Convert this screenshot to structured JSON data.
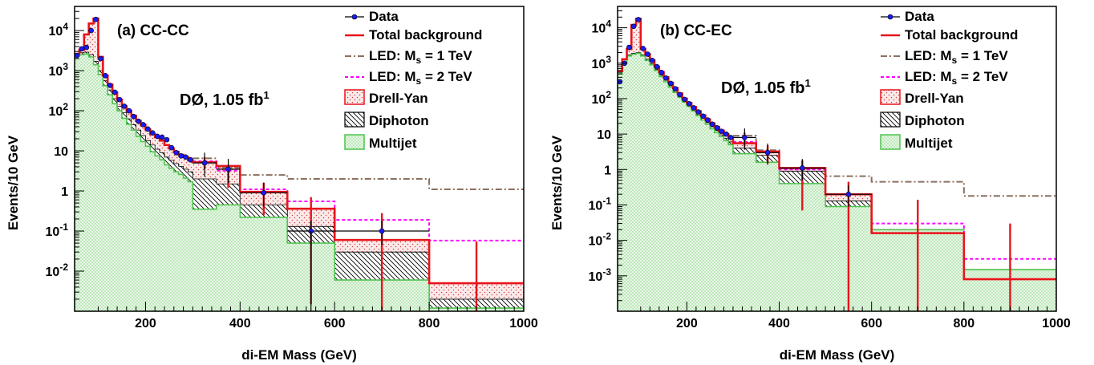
{
  "chart_data": [
    {
      "type": "histogram",
      "panel_label": "(a) CC-CC",
      "experiment_label": "DØ, 1.05 fb",
      "experiment_label_sup": "1",
      "xlabel": "di-EM Mass (GeV)",
      "ylabel": "Events/10 GeV",
      "xlim": [
        50,
        1000
      ],
      "ylim": [
        0.001,
        40000
      ],
      "yscale": "log",
      "x_ticks": [
        200,
        400,
        600,
        800,
        1000
      ],
      "y_ticks": [
        {
          "value": 0.01,
          "mant": "10",
          "exp": "-2"
        },
        {
          "value": 0.1,
          "mant": "10",
          "exp": "-1"
        },
        {
          "value": 1,
          "mant": "1",
          "exp": ""
        },
        {
          "value": 10,
          "mant": "10",
          "exp": ""
        },
        {
          "value": 100,
          "mant": "10",
          "exp": "2"
        },
        {
          "value": 1000,
          "mant": "10",
          "exp": "3"
        },
        {
          "value": 10000,
          "mant": "10",
          "exp": "4"
        }
      ],
      "grid": false,
      "legend_position": "top-right",
      "legend": {
        "data": "Data",
        "total": "Total background",
        "led1": "LED: M",
        "led1_sub": "s",
        "led1_rest": " = 1 TeV",
        "led2": "LED: M",
        "led2_sub": "s",
        "led2_rest": " = 2 TeV",
        "dy": "Drell-Yan",
        "diphoton": "Diphoton",
        "multijet": "Multijet"
      },
      "bin_edges": [
        50,
        60,
        70,
        80,
        90,
        100,
        110,
        120,
        130,
        140,
        150,
        160,
        170,
        180,
        190,
        200,
        210,
        220,
        230,
        240,
        250,
        260,
        270,
        280,
        290,
        300,
        350,
        400,
        500,
        600,
        800,
        1000
      ],
      "multijet": [
        2300,
        2500,
        2600,
        2200,
        1400,
        800,
        420,
        250,
        150,
        100,
        65,
        46,
        33,
        23,
        17,
        13,
        9.5,
        7.5,
        6,
        4.5,
        3.7,
        3,
        2.6,
        2.1,
        1.7,
        0.35,
        0.45,
        0.22,
        0.05,
        0.006,
        0.0012
      ],
      "diphoton": [
        2500,
        2800,
        2900,
        2500,
        1700,
        1000,
        560,
        330,
        200,
        130,
        90,
        63,
        45,
        33,
        24,
        18,
        14,
        11,
        9,
        7,
        5.8,
        4.8,
        4.1,
        3.5,
        3,
        2,
        1.5,
        0.45,
        0.13,
        0.03,
        0.002
      ],
      "total": [
        2600,
        3300,
        8000,
        15000,
        20000,
        2200,
        760,
        450,
        290,
        190,
        130,
        100,
        75,
        56,
        45,
        34,
        26,
        22,
        18,
        14,
        11.5,
        9.5,
        8,
        7,
        5.8,
        5.2,
        4.2,
        0.95,
        0.36,
        0.06,
        0.005
      ],
      "led_ms1": [
        null,
        null,
        null,
        null,
        null,
        null,
        null,
        null,
        null,
        null,
        null,
        null,
        null,
        null,
        null,
        null,
        null,
        null,
        null,
        null,
        null,
        null,
        null,
        null,
        null,
        6.5,
        3.8,
        2.5,
        2.0,
        2.0,
        1.1
      ],
      "led_ms2": [
        null,
        null,
        null,
        null,
        null,
        null,
        null,
        null,
        null,
        null,
        null,
        null,
        null,
        null,
        null,
        null,
        null,
        null,
        null,
        null,
        null,
        null,
        null,
        null,
        null,
        5.5,
        3.2,
        1.1,
        0.55,
        0.19,
        0.058
      ],
      "data_points": [
        {
          "x": 55,
          "y": 2400
        },
        {
          "x": 65,
          "y": 3500
        },
        {
          "x": 75,
          "y": 3800
        },
        {
          "x": 85,
          "y": 10000
        },
        {
          "x": 95,
          "y": 19000
        },
        {
          "x": 105,
          "y": 2000
        },
        {
          "x": 115,
          "y": 750
        },
        {
          "x": 125,
          "y": 430
        },
        {
          "x": 135,
          "y": 290
        },
        {
          "x": 145,
          "y": 190
        },
        {
          "x": 155,
          "y": 130
        },
        {
          "x": 165,
          "y": 100
        },
        {
          "x": 175,
          "y": 72
        },
        {
          "x": 185,
          "y": 55
        },
        {
          "x": 195,
          "y": 45
        },
        {
          "x": 205,
          "y": 35
        },
        {
          "x": 215,
          "y": 28
        },
        {
          "x": 225,
          "y": 23
        },
        {
          "x": 235,
          "y": 22
        },
        {
          "x": 245,
          "y": 19
        },
        {
          "x": 255,
          "y": 12
        },
        {
          "x": 265,
          "y": 9
        },
        {
          "x": 275,
          "y": 7.5
        },
        {
          "x": 285,
          "y": 7
        },
        {
          "x": 295,
          "y": 6
        },
        {
          "x": 325,
          "y": 5
        },
        {
          "x": 375,
          "y": 3.5
        },
        {
          "x": 450,
          "y": 0.9
        },
        {
          "x": 550,
          "y": 0.1
        },
        {
          "x": 700,
          "y": 0.1
        }
      ],
      "total_error_bars": [
        {
          "x": 325,
          "lo": 3.5,
          "hi": 7
        },
        {
          "x": 375,
          "lo": 1.2,
          "hi": 4.5
        },
        {
          "x": 450,
          "lo": 0.25,
          "hi": 1.6
        },
        {
          "x": 550,
          "lo": 0.0015,
          "hi": 0.7
        },
        {
          "x": 700,
          "lo": 0.0005,
          "hi": 0.28
        },
        {
          "x": 900,
          "lo": 0.0005,
          "hi": 0.055
        }
      ]
    },
    {
      "type": "histogram",
      "panel_label": "(b) CC-EC",
      "experiment_label": "DØ, 1.05 fb",
      "experiment_label_sup": "1",
      "xlabel": "di-EM Mass (GeV)",
      "ylabel": "Events/10 GeV",
      "xlim": [
        50,
        1000
      ],
      "ylim": [
        0.0001,
        40000
      ],
      "yscale": "log",
      "x_ticks": [
        200,
        400,
        600,
        800,
        1000
      ],
      "y_ticks": [
        {
          "value": 0.001,
          "mant": "10",
          "exp": "-3"
        },
        {
          "value": 0.01,
          "mant": "10",
          "exp": "-2"
        },
        {
          "value": 0.1,
          "mant": "10",
          "exp": "-1"
        },
        {
          "value": 1,
          "mant": "1",
          "exp": ""
        },
        {
          "value": 10,
          "mant": "10",
          "exp": ""
        },
        {
          "value": 100,
          "mant": "10",
          "exp": "2"
        },
        {
          "value": 1000,
          "mant": "10",
          "exp": "3"
        },
        {
          "value": 10000,
          "mant": "10",
          "exp": "4"
        }
      ],
      "grid": false,
      "legend_position": "top-right",
      "legend": {
        "data": "Data",
        "total": "Total background",
        "led1": "LED: M",
        "led1_sub": "s",
        "led1_rest": " = 1 TeV",
        "led2": "LED: M",
        "led2_sub": "s",
        "led2_rest": " = 2 TeV",
        "dy": "Drell-Yan",
        "diphoton": "Diphoton",
        "multijet": "Multijet"
      },
      "bin_edges": [
        50,
        60,
        70,
        80,
        90,
        100,
        110,
        120,
        130,
        140,
        150,
        160,
        170,
        180,
        190,
        200,
        210,
        220,
        230,
        240,
        250,
        260,
        270,
        280,
        290,
        300,
        350,
        400,
        500,
        600,
        800,
        1000
      ],
      "multijet": [
        500,
        1000,
        1600,
        1800,
        1900,
        1600,
        1200,
        900,
        620,
        420,
        300,
        210,
        150,
        110,
        80,
        60,
        45,
        33,
        25,
        19,
        14,
        11,
        8.5,
        6.5,
        5,
        2.8,
        1.6,
        0.4,
        0.09,
        0.02,
        0.0015
      ],
      "diphoton": [
        550,
        1100,
        1700,
        1900,
        2000,
        1700,
        1300,
        950,
        660,
        460,
        330,
        230,
        165,
        120,
        88,
        66,
        50,
        37,
        28,
        21,
        16,
        12.5,
        9.5,
        7.5,
        6,
        4,
        2.5,
        0.9,
        0.13,
        0.013,
        0.0007
      ],
      "total": [
        600,
        1300,
        2500,
        12000,
        18000,
        2500,
        1800,
        1200,
        800,
        560,
        400,
        280,
        200,
        140,
        100,
        75,
        58,
        44,
        34,
        26,
        20,
        16,
        12.5,
        10,
        8,
        5.5,
        3.2,
        1.1,
        0.2,
        0.016,
        0.0008
      ],
      "led_ms1": [
        null,
        null,
        null,
        null,
        null,
        null,
        null,
        null,
        null,
        null,
        null,
        null,
        null,
        null,
        null,
        null,
        null,
        null,
        null,
        null,
        null,
        null,
        null,
        null,
        null,
        9,
        3.5,
        1.1,
        0.65,
        0.45,
        0.18
      ],
      "led_ms2": [
        null,
        null,
        null,
        null,
        null,
        null,
        null,
        null,
        null,
        null,
        null,
        null,
        null,
        null,
        null,
        null,
        null,
        null,
        null,
        null,
        null,
        null,
        null,
        null,
        null,
        6,
        3.2,
        1.0,
        0.2,
        0.03,
        0.003
      ],
      "data_points": [
        {
          "x": 55,
          "y": 300
        },
        {
          "x": 65,
          "y": 1000
        },
        {
          "x": 75,
          "y": 2800
        },
        {
          "x": 85,
          "y": 11000
        },
        {
          "x": 95,
          "y": 17000
        },
        {
          "x": 105,
          "y": 2600
        },
        {
          "x": 115,
          "y": 1800
        },
        {
          "x": 125,
          "y": 1200
        },
        {
          "x": 135,
          "y": 800
        },
        {
          "x": 145,
          "y": 550
        },
        {
          "x": 155,
          "y": 380
        },
        {
          "x": 165,
          "y": 270
        },
        {
          "x": 175,
          "y": 190
        },
        {
          "x": 185,
          "y": 130
        },
        {
          "x": 195,
          "y": 95
        },
        {
          "x": 205,
          "y": 72
        },
        {
          "x": 215,
          "y": 55
        },
        {
          "x": 225,
          "y": 42
        },
        {
          "x": 235,
          "y": 32
        },
        {
          "x": 245,
          "y": 25
        },
        {
          "x": 255,
          "y": 19
        },
        {
          "x": 265,
          "y": 15
        },
        {
          "x": 275,
          "y": 12
        },
        {
          "x": 285,
          "y": 10
        },
        {
          "x": 295,
          "y": 8
        },
        {
          "x": 325,
          "y": 8
        },
        {
          "x": 375,
          "y": 3
        },
        {
          "x": 450,
          "y": 1.1
        },
        {
          "x": 550,
          "y": 0.2
        }
      ],
      "total_error_bars": [
        {
          "x": 325,
          "lo": 4.5,
          "hi": 11
        },
        {
          "x": 375,
          "lo": 1.5,
          "hi": 4.8
        },
        {
          "x": 450,
          "lo": 0.07,
          "hi": 1.8
        },
        {
          "x": 550,
          "lo": 0.0001,
          "hi": 0.45
        },
        {
          "x": 700,
          "lo": 0.0001,
          "hi": 0.14
        },
        {
          "x": 900,
          "lo": 0.0001,
          "hi": 0.03
        }
      ]
    }
  ]
}
